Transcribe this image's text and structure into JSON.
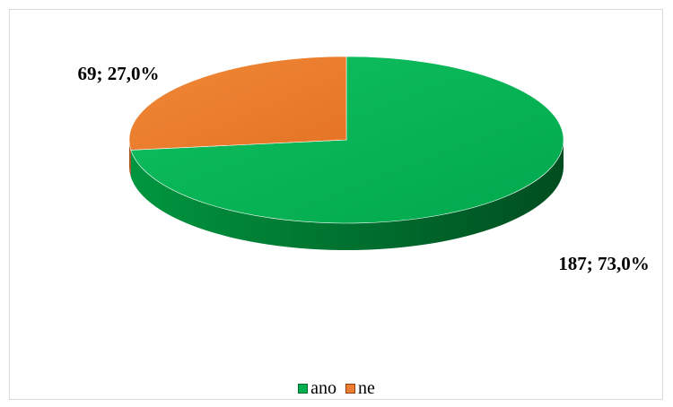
{
  "chart_data": {
    "type": "pie",
    "style": "3d",
    "categories": [
      "ano",
      "ne"
    ],
    "values": [
      187,
      69
    ],
    "percentages": [
      "73,0%",
      "27,0%"
    ],
    "data_labels": [
      "187; 73,0%",
      "69; 27,0%"
    ],
    "colors": [
      "#00B050",
      "#ED7D31"
    ],
    "legend": {
      "position": "bottom",
      "entries": [
        "ano",
        "ne"
      ]
    },
    "title": ""
  }
}
